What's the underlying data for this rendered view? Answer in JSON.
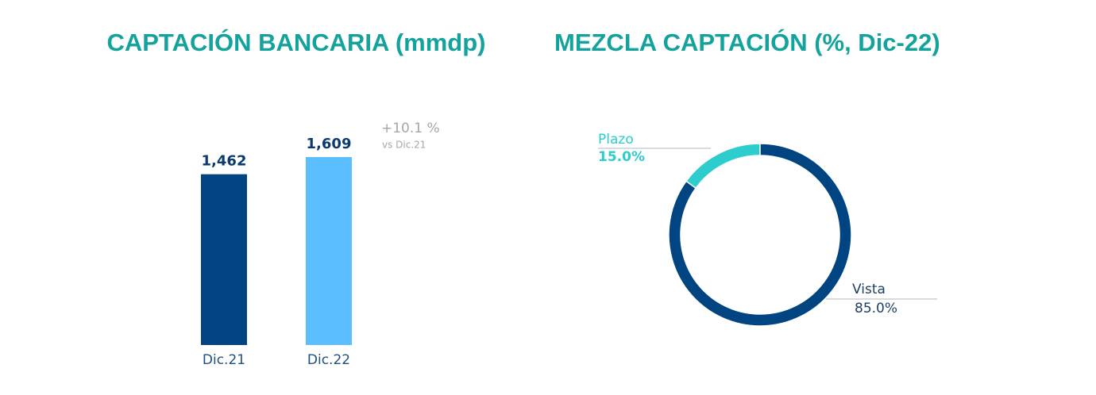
{
  "chart_data": [
    {
      "type": "bar",
      "title": "CAPTACIÓN BANCARIA (mmdp)",
      "categories": [
        "Dic.21",
        "Dic.22"
      ],
      "values": [
        1462,
        1609
      ],
      "value_labels": [
        "1,462",
        "1,609"
      ],
      "colors": [
        "#004481",
        "#5bbeff"
      ],
      "annotations": [
        "+10.1 %",
        "vs Dic.21"
      ]
    },
    {
      "type": "donut",
      "title": "MEZCLA CAPTACIÓN (%, Dic-22)",
      "categories": [
        "Plazo",
        "Vista"
      ],
      "values": [
        15,
        85
      ],
      "value_labels": [
        "15.0%",
        "85.0%"
      ],
      "colors": [
        "#2dcccd",
        "#004481"
      ]
    }
  ]
}
